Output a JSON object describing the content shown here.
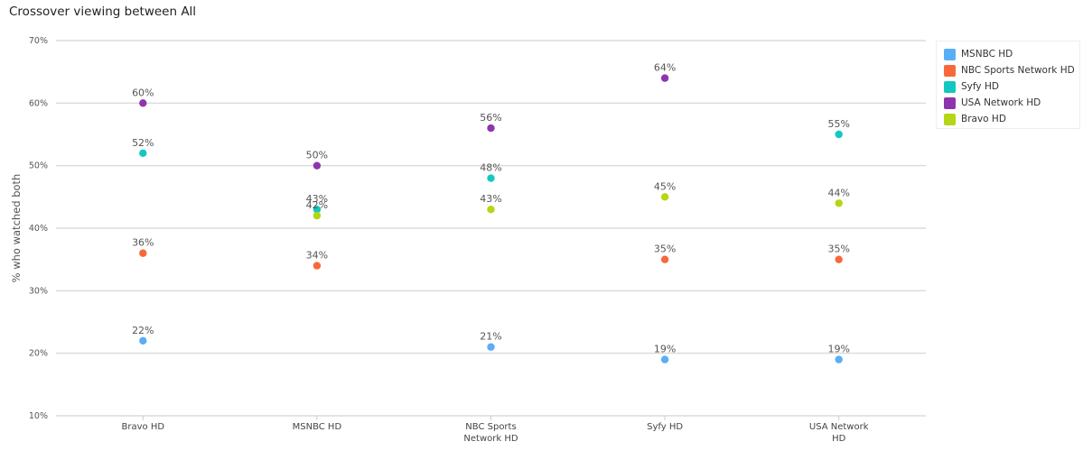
{
  "title": "Crossover viewing between All",
  "chart_data": {
    "type": "scatter",
    "title": "Crossover viewing between All",
    "xlabel": "",
    "ylabel": "% who watched both",
    "ylim": [
      10,
      70
    ],
    "yticks": [
      10,
      20,
      30,
      40,
      50,
      60,
      70
    ],
    "ytick_suffix": "%",
    "grid": true,
    "legend_position": "top-right",
    "categories": [
      [
        "Bravo HD"
      ],
      [
        "MSNBC HD"
      ],
      [
        "NBC Sports",
        "Network HD"
      ],
      [
        "Syfy HD"
      ],
      [
        "USA Network",
        "HD"
      ]
    ],
    "series": [
      {
        "name": "MSNBC HD",
        "color": "#5aaef6",
        "values": [
          22,
          null,
          21,
          19,
          19
        ],
        "labels": [
          "22%",
          null,
          "21%",
          "19%",
          "19%"
        ]
      },
      {
        "name": "NBC Sports Network HD",
        "color": "#f8683a",
        "values": [
          36,
          34,
          null,
          35,
          35
        ],
        "labels": [
          "36%",
          "34%",
          null,
          "35%",
          "35%"
        ]
      },
      {
        "name": "Syfy HD",
        "color": "#13c8c0",
        "values": [
          52,
          43,
          48,
          null,
          55
        ],
        "labels": [
          "52%",
          "43%",
          "48%",
          null,
          "55%"
        ]
      },
      {
        "name": "USA Network HD",
        "color": "#8e35ad",
        "values": [
          60,
          50,
          56,
          64,
          null
        ],
        "labels": [
          "60%",
          "50%",
          "56%",
          "64%",
          null
        ]
      },
      {
        "name": "Bravo HD",
        "color": "#b3d615",
        "values": [
          null,
          42,
          43,
          45,
          44
        ],
        "labels": [
          null,
          "42%",
          "43%",
          "45%",
          "44%"
        ]
      }
    ]
  }
}
